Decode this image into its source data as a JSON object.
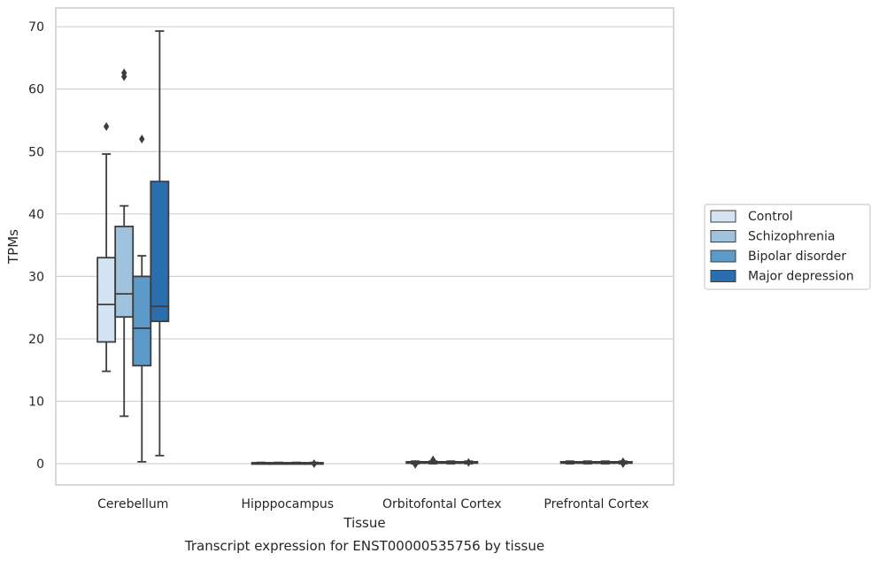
{
  "chart_data": {
    "type": "box",
    "caption": "Transcript expression for ENST00000535756 by tissue",
    "xlabel": "Tissue",
    "ylabel": "TPMs",
    "ylim": [
      -3.4,
      73
    ],
    "yticks": [
      0,
      10,
      20,
      30,
      40,
      50,
      60,
      70
    ],
    "categories": [
      "Cerebellum",
      "Hipppocampus",
      "Orbitofontal Cortex",
      "Prefrontal Cortex"
    ],
    "grid": true,
    "legend_position": "right",
    "series": [
      {
        "name": "Control",
        "color": "#d4e3f2",
        "boxes": [
          {
            "whislo": 14.8,
            "q1": 19.5,
            "med": 25.5,
            "q3": 33.0,
            "whishi": 49.6,
            "fliers": [
              54.0
            ]
          },
          {
            "whislo": 0.0,
            "q1": 0.05,
            "med": 0.1,
            "q3": 0.15,
            "whishi": 0.2,
            "fliers": []
          },
          {
            "whislo": 0.0,
            "q1": 0.1,
            "med": 0.2,
            "q3": 0.3,
            "whishi": 0.4,
            "fliers": [
              -0.1
            ]
          },
          {
            "whislo": 0.0,
            "q1": 0.1,
            "med": 0.2,
            "q3": 0.3,
            "whishi": 0.4,
            "fliers": []
          }
        ]
      },
      {
        "name": "Schizophrenia",
        "color": "#9fc3de",
        "boxes": [
          {
            "whislo": 7.6,
            "q1": 23.5,
            "med": 27.2,
            "q3": 38.0,
            "whishi": 41.3,
            "fliers": [
              62.0,
              62.6
            ]
          },
          {
            "whislo": 0.0,
            "q1": 0.05,
            "med": 0.1,
            "q3": 0.15,
            "whishi": 0.2,
            "fliers": []
          },
          {
            "whislo": 0.0,
            "q1": 0.1,
            "med": 0.2,
            "q3": 0.3,
            "whishi": 0.4,
            "fliers": [
              0.6
            ]
          },
          {
            "whislo": 0.0,
            "q1": 0.1,
            "med": 0.2,
            "q3": 0.3,
            "whishi": 0.4,
            "fliers": []
          }
        ]
      },
      {
        "name": "Bipolar disorder",
        "color": "#5b9ac9",
        "boxes": [
          {
            "whislo": 0.3,
            "q1": 15.7,
            "med": 21.7,
            "q3": 30.0,
            "whishi": 33.3,
            "fliers": [
              52.0
            ]
          },
          {
            "whislo": 0.0,
            "q1": 0.05,
            "med": 0.1,
            "q3": 0.15,
            "whishi": 0.2,
            "fliers": []
          },
          {
            "whislo": 0.0,
            "q1": 0.1,
            "med": 0.2,
            "q3": 0.3,
            "whishi": 0.4,
            "fliers": []
          },
          {
            "whislo": 0.0,
            "q1": 0.1,
            "med": 0.2,
            "q3": 0.3,
            "whishi": 0.4,
            "fliers": []
          }
        ]
      },
      {
        "name": "Major depression",
        "color": "#2a6eb0",
        "boxes": [
          {
            "whislo": 1.3,
            "q1": 22.8,
            "med": 25.2,
            "q3": 45.2,
            "whishi": 69.3,
            "fliers": []
          },
          {
            "whislo": 0.0,
            "q1": 0.05,
            "med": 0.1,
            "q3": 0.15,
            "whishi": 0.2,
            "fliers": [
              0.0
            ]
          },
          {
            "whislo": 0.0,
            "q1": 0.1,
            "med": 0.2,
            "q3": 0.3,
            "whishi": 0.4,
            "fliers": [
              0.2
            ]
          },
          {
            "whislo": 0.0,
            "q1": 0.1,
            "med": 0.2,
            "q3": 0.3,
            "whishi": 0.4,
            "fliers": [
              0.0,
              0.3
            ]
          }
        ]
      }
    ]
  }
}
